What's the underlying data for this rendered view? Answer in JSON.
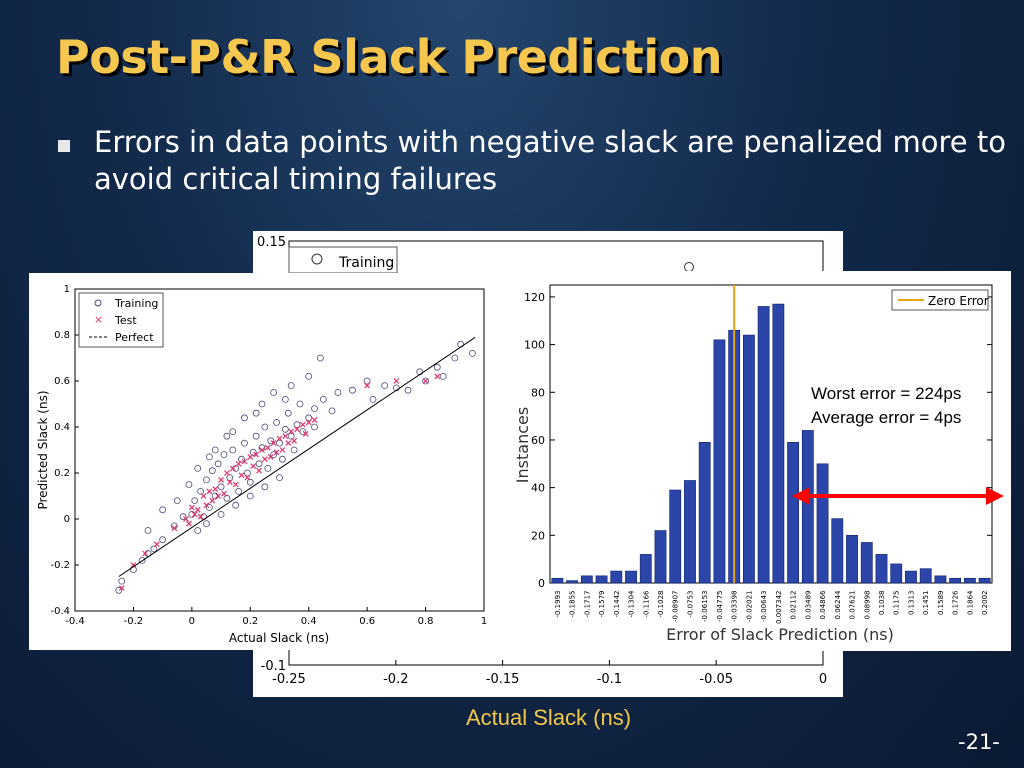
{
  "slide": {
    "title": "Post-P&R Slack Prediction",
    "bullet": "Errors in data points with negative slack are penalized more to avoid critical timing failures",
    "bottom_xlabel": "Actual Slack (ns)",
    "page_number": "-21-"
  },
  "colors": {
    "title": "#f6c74f",
    "bar_fill": "#2b46a8",
    "zero_line": "#e8a317",
    "arrow": "#ff0000",
    "scatter_test": "#e0336a",
    "scatter_train": "#4a4a7a"
  },
  "chart_data": [
    {
      "type": "scatter",
      "id": "scatter-front",
      "xlabel": "Actual Slack (ns)",
      "ylabel": "Predicted Slack (ns)",
      "xlim": [
        -0.4,
        1
      ],
      "ylim": [
        -0.4,
        1
      ],
      "x_ticks": [
        "-0.4",
        "-0.2",
        "0",
        "0.2",
        "0.4",
        "0.6",
        "0.8",
        "1"
      ],
      "y_ticks": [
        "-0.4",
        "-0.2",
        "0",
        "0.2",
        "0.4",
        "0.6",
        "0.8",
        "1"
      ],
      "legend": [
        "Training",
        "Test",
        "Perfect"
      ],
      "legend_position": "top-left",
      "perfect_line": [
        [
          -0.25,
          -0.25
        ],
        [
          0.97,
          0.79
        ]
      ],
      "training_points": [
        [
          -0.25,
          -0.31
        ],
        [
          -0.24,
          -0.27
        ],
        [
          -0.2,
          -0.22
        ],
        [
          -0.17,
          -0.18
        ],
        [
          -0.15,
          -0.15
        ],
        [
          -0.13,
          -0.13
        ],
        [
          -0.1,
          -0.09
        ],
        [
          -0.06,
          -0.03
        ],
        [
          -0.03,
          0.01
        ],
        [
          0.0,
          0.02
        ],
        [
          0.01,
          0.08
        ],
        [
          0.02,
          -0.05
        ],
        [
          0.03,
          0.12
        ],
        [
          0.04,
          0.01
        ],
        [
          0.05,
          0.17
        ],
        [
          0.06,
          0.05
        ],
        [
          0.07,
          0.21
        ],
        [
          0.08,
          0.1
        ],
        [
          0.09,
          0.24
        ],
        [
          0.1,
          0.14
        ],
        [
          0.11,
          0.28
        ],
        [
          0.12,
          0.09
        ],
        [
          0.13,
          0.18
        ],
        [
          0.14,
          0.3
        ],
        [
          0.15,
          0.22
        ],
        [
          0.16,
          0.12
        ],
        [
          0.17,
          0.26
        ],
        [
          0.18,
          0.33
        ],
        [
          0.19,
          0.2
        ],
        [
          0.2,
          0.16
        ],
        [
          0.21,
          0.29
        ],
        [
          0.22,
          0.36
        ],
        [
          0.23,
          0.24
        ],
        [
          0.24,
          0.31
        ],
        [
          0.25,
          0.4
        ],
        [
          0.26,
          0.22
        ],
        [
          0.27,
          0.34
        ],
        [
          0.28,
          0.28
        ],
        [
          0.29,
          0.42
        ],
        [
          0.3,
          0.33
        ],
        [
          0.31,
          0.26
        ],
        [
          0.32,
          0.39
        ],
        [
          0.33,
          0.46
        ],
        [
          0.34,
          0.36
        ],
        [
          0.35,
          0.3
        ],
        [
          0.36,
          0.41
        ],
        [
          0.37,
          0.5
        ],
        [
          0.38,
          0.38
        ],
        [
          0.4,
          0.44
        ],
        [
          0.42,
          0.4
        ],
        [
          0.45,
          0.52
        ],
        [
          0.48,
          0.47
        ],
        [
          0.5,
          0.55
        ],
        [
          0.55,
          0.56
        ],
        [
          0.6,
          0.6
        ],
        [
          0.62,
          0.52
        ],
        [
          0.66,
          0.58
        ],
        [
          0.7,
          0.57
        ],
        [
          0.74,
          0.56
        ],
        [
          0.78,
          0.64
        ],
        [
          0.8,
          0.6
        ],
        [
          0.84,
          0.66
        ],
        [
          0.86,
          0.62
        ],
        [
          0.9,
          0.7
        ],
        [
          0.92,
          0.76
        ],
        [
          0.96,
          0.72
        ],
        [
          0.05,
          -0.02
        ],
        [
          0.1,
          0.02
        ],
        [
          0.15,
          0.06
        ],
        [
          0.2,
          0.1
        ],
        [
          0.25,
          0.14
        ],
        [
          0.3,
          0.18
        ],
        [
          -0.01,
          0.15
        ],
        [
          0.06,
          0.27
        ],
        [
          0.12,
          0.36
        ],
        [
          0.18,
          0.44
        ],
        [
          0.24,
          0.5
        ],
        [
          0.28,
          0.55
        ],
        [
          0.34,
          0.58
        ],
        [
          0.4,
          0.62
        ],
        [
          0.44,
          0.7
        ],
        [
          -0.15,
          -0.05
        ],
        [
          -0.1,
          0.04
        ],
        [
          -0.05,
          0.08
        ],
        [
          0.02,
          0.22
        ],
        [
          0.08,
          0.3
        ],
        [
          0.14,
          0.38
        ],
        [
          0.22,
          0.46
        ],
        [
          0.32,
          0.52
        ],
        [
          0.42,
          0.48
        ]
      ],
      "test_points": [
        [
          -0.24,
          -0.3
        ],
        [
          -0.2,
          -0.2
        ],
        [
          -0.16,
          -0.15
        ],
        [
          -0.12,
          -0.11
        ],
        [
          -0.06,
          -0.04
        ],
        [
          -0.02,
          0.0
        ],
        [
          0.0,
          0.05
        ],
        [
          0.02,
          0.04
        ],
        [
          0.04,
          0.1
        ],
        [
          0.06,
          0.12
        ],
        [
          0.08,
          0.13
        ],
        [
          0.1,
          0.17
        ],
        [
          0.12,
          0.2
        ],
        [
          0.14,
          0.22
        ],
        [
          0.16,
          0.24
        ],
        [
          0.18,
          0.25
        ],
        [
          0.2,
          0.27
        ],
        [
          0.22,
          0.28
        ],
        [
          0.24,
          0.3
        ],
        [
          0.26,
          0.31
        ],
        [
          0.28,
          0.33
        ],
        [
          0.3,
          0.35
        ],
        [
          0.32,
          0.36
        ],
        [
          0.34,
          0.38
        ],
        [
          0.36,
          0.39
        ],
        [
          0.38,
          0.41
        ],
        [
          0.4,
          0.42
        ],
        [
          0.42,
          0.43
        ],
        [
          0.05,
          0.06
        ],
        [
          0.09,
          0.1
        ],
        [
          0.13,
          0.16
        ],
        [
          0.17,
          0.19
        ],
        [
          0.21,
          0.23
        ],
        [
          0.25,
          0.26
        ],
        [
          0.29,
          0.29
        ],
        [
          0.33,
          0.33
        ],
        [
          0.03,
          0.01
        ],
        [
          0.07,
          0.08
        ],
        [
          0.11,
          0.11
        ],
        [
          0.15,
          0.15
        ],
        [
          0.19,
          0.18
        ],
        [
          0.23,
          0.21
        ],
        [
          0.27,
          0.27
        ],
        [
          0.31,
          0.3
        ],
        [
          0.35,
          0.34
        ],
        [
          0.39,
          0.37
        ],
        [
          0.01,
          0.02
        ],
        [
          -0.01,
          -0.02
        ],
        [
          0.6,
          0.58
        ],
        [
          0.7,
          0.6
        ],
        [
          0.8,
          0.6
        ],
        [
          0.84,
          0.62
        ]
      ]
    },
    {
      "type": "bar",
      "id": "histogram-front",
      "xlabel": "Error of Slack Prediction (ns)",
      "ylabel": "Instances",
      "ylim": [
        0,
        125
      ],
      "y_ticks": [
        "0",
        "20",
        "40",
        "60",
        "80",
        "100",
        "120"
      ],
      "legend": [
        "Zero Error"
      ],
      "legend_position": "top-right",
      "zero_error_bin": 12.5,
      "categories": [
        "-0.1993",
        "-0.1855",
        "-0.1717",
        "-0.1579",
        "-0.1442",
        "-0.1304",
        "-0.1166",
        "-0.1028",
        "-0.08907",
        "-0.0753",
        "-0.06153",
        "-0.04775",
        "-0.03398",
        "-0.02021",
        "-0.00643",
        "0.007342",
        "0.02112",
        "0.03489",
        "0.04866",
        "0.06244",
        "0.07621",
        "0.08998",
        "0.1038",
        "0.1175",
        "0.1313",
        "0.1451",
        "0.1589",
        "0.1726",
        "0.1864",
        "0.2002"
      ],
      "values": [
        2,
        1,
        3,
        3,
        5,
        5,
        12,
        22,
        39,
        43,
        59,
        102,
        106,
        104,
        116,
        117,
        59,
        64,
        50,
        27,
        20,
        17,
        12,
        8,
        5,
        6,
        3,
        2,
        2,
        2
      ]
    },
    {
      "type": "scatter",
      "id": "scatter-back",
      "xlabel": "",
      "ylabel": "",
      "xlim": [
        -0.25,
        0
      ],
      "ylim": [
        -0.1,
        0.15
      ],
      "x_ticks": [
        "-0.25",
        "-0.2",
        "-0.15",
        "-0.1",
        "-0.05",
        "0"
      ],
      "y_ticks": [
        "0.15",
        "-0.1"
      ],
      "legend": [
        "Training"
      ]
    }
  ],
  "annotation": {
    "worst_error": "Worst error = 224ps",
    "average_error": "Average error = 4ps"
  }
}
